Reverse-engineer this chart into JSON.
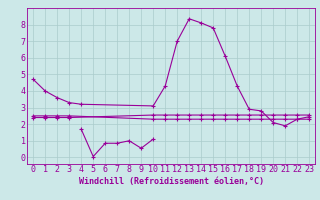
{
  "background_color": "#cce8e8",
  "grid_color": "#aacccc",
  "line_color": "#990099",
  "xlabel": "Windchill (Refroidissement éolien,°C)",
  "xlabel_fontsize": 6.0,
  "tick_fontsize": 6.0,
  "xlim": [
    -0.5,
    23.5
  ],
  "ylim": [
    -0.4,
    9.0
  ],
  "yticks": [
    0,
    1,
    2,
    3,
    4,
    5,
    6,
    7,
    8
  ],
  "xticks": [
    0,
    1,
    2,
    3,
    4,
    5,
    6,
    7,
    8,
    9,
    10,
    11,
    12,
    13,
    14,
    15,
    16,
    17,
    18,
    19,
    20,
    21,
    22,
    23
  ],
  "series": [
    {
      "x": [
        0,
        1,
        2,
        3,
        4,
        10,
        11,
        12,
        13,
        14,
        15,
        16,
        17,
        18,
        19,
        20,
        21,
        22,
        23
      ],
      "y": [
        4.7,
        4.0,
        3.6,
        3.3,
        3.2,
        3.1,
        4.3,
        7.0,
        8.35,
        8.1,
        7.8,
        6.1,
        4.3,
        2.9,
        2.8,
        2.1,
        1.9,
        2.3,
        2.45
      ]
    },
    {
      "x": [
        0,
        1,
        2,
        3,
        10,
        11,
        12,
        13,
        14,
        15,
        16,
        17,
        18,
        19,
        20,
        21,
        22,
        23
      ],
      "y": [
        2.4,
        2.4,
        2.4,
        2.4,
        2.55,
        2.55,
        2.55,
        2.55,
        2.55,
        2.55,
        2.55,
        2.55,
        2.55,
        2.55,
        2.55,
        2.55,
        2.55,
        2.55
      ]
    },
    {
      "x": [
        0,
        1,
        2,
        3,
        10,
        11,
        12,
        13,
        14,
        15,
        16,
        17,
        18,
        19,
        20,
        21,
        22,
        23
      ],
      "y": [
        2.5,
        2.5,
        2.5,
        2.5,
        2.3,
        2.3,
        2.3,
        2.3,
        2.3,
        2.3,
        2.3,
        2.3,
        2.3,
        2.3,
        2.3,
        2.3,
        2.3,
        2.3
      ]
    },
    {
      "x": [
        4,
        5,
        6,
        7,
        8,
        9,
        10
      ],
      "y": [
        1.7,
        0.05,
        0.85,
        0.85,
        1.0,
        0.55,
        1.1
      ]
    }
  ],
  "marker": "+",
  "markersize": 3.5,
  "linewidth": 0.8
}
